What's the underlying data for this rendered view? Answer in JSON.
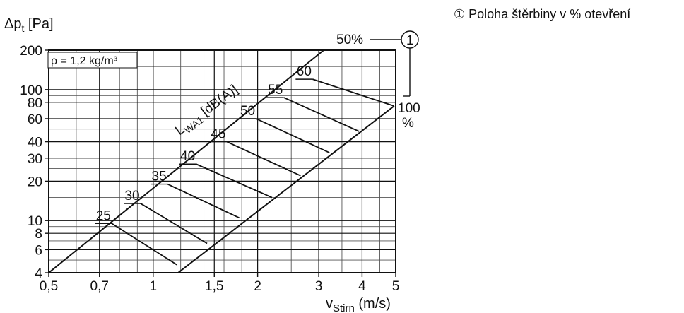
{
  "note": {
    "symbol": "①",
    "text": "Poloha štěrbiny v % otevření"
  },
  "chart_data": {
    "type": "line",
    "x_scale": "log",
    "y_scale": "log",
    "xlim": [
      0.5,
      5
    ],
    "ylim": [
      4,
      200
    ],
    "x_ticks": [
      0.5,
      0.7,
      1,
      1.5,
      2,
      3,
      4,
      5
    ],
    "x_tick_labels": [
      "0,5",
      "0,7",
      "1",
      "1,5",
      "2",
      "3",
      "4",
      "5"
    ],
    "y_ticks": [
      4,
      6,
      8,
      10,
      20,
      30,
      40,
      60,
      80,
      100,
      200
    ],
    "y_tick_labels": [
      "4",
      "6",
      "8",
      "10",
      "20",
      "30",
      "40",
      "60",
      "80",
      "100",
      "200"
    ],
    "x_minor_grid": [
      0.6,
      0.8,
      0.9,
      1.2,
      1.4,
      1.6,
      1.8,
      2.5,
      3.5,
      4.5
    ],
    "y_minor_grid": [
      5,
      7,
      9,
      15,
      25,
      50,
      70,
      90,
      150
    ],
    "grid": true,
    "ylabel_main": "Δp",
    "ylabel_sub": "t",
    "ylabel_unit": " [Pa]",
    "xlabel_main": "v",
    "xlabel_sub": "Stirn",
    "xlabel_unit": " (m/s)",
    "density_label": "ρ = 1,2 kg/m³",
    "lwa_label_main": "L",
    "lwa_label_sub": "WA1",
    "lwa_label_unit": " [dB(A)]",
    "series": [
      {
        "name": "50%",
        "x": [
          0.5,
          3.1
        ],
        "y": [
          4.0,
          200
        ]
      },
      {
        "name": "100%",
        "x": [
          1.18,
          4.95
        ],
        "y": [
          4.0,
          75
        ]
      }
    ],
    "noise_lines": [
      {
        "label": "25",
        "x1": 0.76,
        "y1": 9.5,
        "x2": 1.17,
        "y2": 4.6
      },
      {
        "label": "30",
        "x1": 0.92,
        "y1": 13.5,
        "x2": 1.43,
        "y2": 6.7
      },
      {
        "label": "35",
        "x1": 1.1,
        "y1": 19,
        "x2": 1.77,
        "y2": 10.5
      },
      {
        "label": "40",
        "x1": 1.33,
        "y1": 27,
        "x2": 2.2,
        "y2": 15
      },
      {
        "label": "45",
        "x1": 1.63,
        "y1": 40,
        "x2": 2.66,
        "y2": 22
      },
      {
        "label": "50",
        "x1": 1.98,
        "y1": 60,
        "x2": 3.22,
        "y2": 33
      },
      {
        "label": "55",
        "x1": 2.38,
        "y1": 87,
        "x2": 3.92,
        "y2": 48
      },
      {
        "label": "60",
        "x1": 2.88,
        "y1": 120,
        "x2": 4.95,
        "y2": 75
      }
    ],
    "callout_50": "50%",
    "callout_100_a": "100",
    "callout_100_b": "%",
    "callout_marker": "1"
  }
}
